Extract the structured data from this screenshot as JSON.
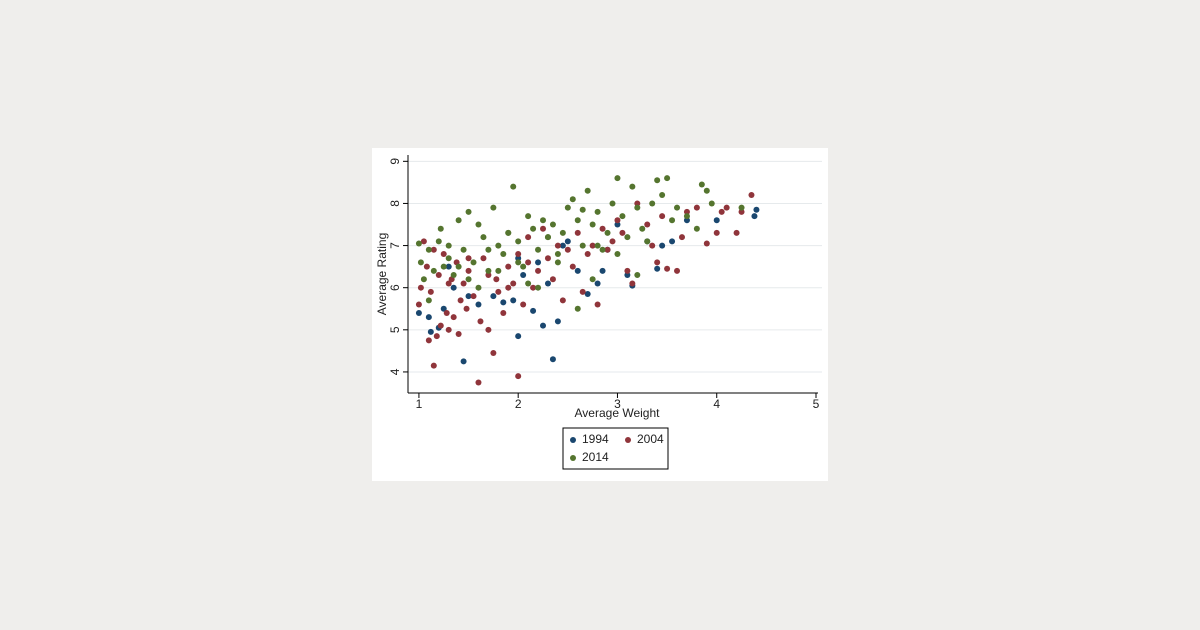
{
  "chart_data": {
    "type": "scatter",
    "x_label": "Average Weight",
    "y_label": "Average Rating",
    "xlim": [
      0.89,
      5
    ],
    "ylim": [
      3.5,
      9.15
    ],
    "xticks": [
      1,
      2,
      3,
      4,
      5
    ],
    "yticks": [
      4,
      5,
      6,
      7,
      8,
      9
    ],
    "grid": true,
    "legend": "bottom",
    "series": [
      {
        "name": "1994",
        "color": "#1a476f",
        "x": [
          1.0,
          1.1,
          1.12,
          1.2,
          1.25,
          1.35,
          1.45,
          1.5,
          1.6,
          1.75,
          1.85,
          1.95,
          2.0,
          2.05,
          2.15,
          2.25,
          2.3,
          2.35,
          2.4,
          2.45,
          2.6,
          2.7,
          2.8,
          2.85,
          2.9,
          3.0,
          3.1,
          3.15,
          3.3,
          3.4,
          3.45,
          3.55,
          3.7,
          4.0,
          4.38,
          4.4,
          2.5,
          1.3,
          2.2,
          2.0
        ],
        "values": [
          5.4,
          5.3,
          4.95,
          5.05,
          5.5,
          6.0,
          4.25,
          5.8,
          5.6,
          5.8,
          5.65,
          5.7,
          4.85,
          6.3,
          5.45,
          5.1,
          6.1,
          4.3,
          5.2,
          7.0,
          6.4,
          5.85,
          6.1,
          6.4,
          6.9,
          7.5,
          6.3,
          6.05,
          7.1,
          6.45,
          7.0,
          7.1,
          7.6,
          7.6,
          7.7,
          7.85,
          7.1,
          6.5,
          6.6,
          6.7
        ]
      },
      {
        "name": "2004",
        "color": "#90353b",
        "x": [
          1.0,
          1.02,
          1.05,
          1.08,
          1.1,
          1.12,
          1.15,
          1.18,
          1.2,
          1.22,
          1.25,
          1.28,
          1.3,
          1.33,
          1.35,
          1.38,
          1.4,
          1.42,
          1.45,
          1.48,
          1.5,
          1.55,
          1.6,
          1.62,
          1.65,
          1.7,
          1.75,
          1.78,
          1.8,
          1.85,
          1.9,
          1.95,
          2.0,
          2.0,
          2.05,
          2.1,
          2.15,
          2.2,
          2.25,
          2.3,
          2.35,
          2.4,
          2.45,
          2.5,
          2.55,
          2.6,
          2.65,
          2.7,
          2.75,
          2.8,
          2.85,
          2.9,
          2.95,
          3.0,
          3.05,
          3.1,
          3.15,
          3.2,
          3.3,
          3.35,
          3.4,
          3.45,
          3.5,
          3.6,
          3.65,
          3.7,
          3.8,
          3.9,
          4.0,
          4.05,
          4.1,
          4.2,
          4.25,
          4.35,
          1.15,
          1.3,
          1.5,
          1.7,
          1.9,
          2.1
        ],
        "values": [
          5.6,
          6.0,
          7.1,
          6.5,
          4.75,
          5.9,
          4.15,
          4.85,
          6.3,
          5.1,
          6.8,
          5.4,
          5.0,
          6.2,
          5.3,
          6.6,
          4.9,
          5.7,
          6.1,
          5.5,
          6.4,
          5.8,
          3.75,
          5.2,
          6.7,
          5.0,
          4.45,
          6.2,
          5.9,
          5.4,
          6.5,
          6.1,
          3.9,
          6.8,
          5.6,
          7.2,
          6.0,
          6.4,
          7.4,
          6.7,
          6.2,
          7.0,
          5.7,
          6.9,
          6.5,
          7.3,
          5.9,
          6.8,
          7.0,
          5.6,
          7.4,
          6.9,
          7.1,
          7.6,
          7.3,
          6.4,
          6.1,
          8.0,
          7.5,
          7.0,
          6.6,
          7.7,
          6.45,
          6.4,
          7.2,
          7.8,
          7.9,
          7.05,
          7.3,
          7.8,
          7.9,
          7.3,
          7.8,
          8.2,
          6.9,
          6.1,
          6.7,
          6.3,
          6.0,
          6.6
        ]
      },
      {
        "name": "2014",
        "color": "#55752f",
        "x": [
          1.0,
          1.02,
          1.05,
          1.1,
          1.15,
          1.2,
          1.22,
          1.25,
          1.3,
          1.35,
          1.4,
          1.45,
          1.5,
          1.55,
          1.6,
          1.65,
          1.7,
          1.75,
          1.8,
          1.85,
          1.9,
          1.95,
          2.0,
          2.05,
          2.1,
          2.15,
          2.2,
          2.25,
          2.3,
          2.35,
          2.4,
          2.45,
          2.5,
          2.55,
          2.6,
          2.65,
          2.7,
          2.75,
          2.8,
          2.85,
          2.9,
          2.95,
          3.0,
          3.05,
          3.1,
          3.15,
          3.2,
          3.25,
          3.3,
          3.35,
          3.4,
          3.45,
          3.5,
          3.55,
          3.6,
          3.7,
          3.8,
          3.85,
          3.9,
          3.95,
          4.25,
          1.3,
          1.5,
          1.7,
          1.9,
          2.0,
          2.2,
          2.4,
          2.6,
          2.8,
          3.0,
          3.2,
          1.1,
          1.4,
          2.3,
          2.65,
          2.75,
          1.6,
          1.8,
          2.1
        ],
        "values": [
          7.05,
          6.6,
          6.2,
          6.9,
          6.4,
          7.1,
          7.4,
          6.5,
          7.0,
          6.3,
          7.6,
          6.9,
          7.8,
          6.6,
          7.5,
          7.2,
          6.4,
          7.9,
          7.0,
          6.8,
          7.3,
          8.4,
          7.1,
          6.5,
          7.7,
          7.4,
          6.9,
          7.6,
          7.2,
          7.5,
          6.8,
          7.3,
          7.9,
          8.1,
          7.6,
          7.0,
          8.3,
          7.5,
          7.8,
          6.9,
          7.3,
          8.0,
          8.6,
          7.7,
          7.2,
          8.4,
          7.9,
          7.4,
          7.1,
          8.0,
          8.55,
          8.2,
          8.6,
          7.6,
          7.9,
          7.7,
          7.4,
          8.45,
          8.3,
          8.0,
          7.9,
          6.7,
          6.2,
          6.9,
          7.3,
          6.6,
          6.0,
          6.6,
          5.5,
          7.0,
          6.8,
          6.3,
          5.7,
          6.5,
          7.2,
          7.85,
          6.2,
          6.0,
          6.4,
          6.1
        ]
      }
    ]
  }
}
